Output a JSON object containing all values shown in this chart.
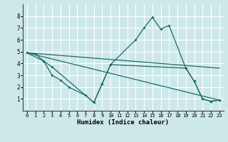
{
  "xlabel": "Humidex (Indice chaleur)",
  "background_color": "#cde8e8",
  "grid_color": "#ffffff",
  "line_color": "#1a6b6b",
  "xlim": [
    -0.5,
    23.5
  ],
  "ylim": [
    0,
    9
  ],
  "xticks": [
    0,
    1,
    2,
    3,
    4,
    5,
    6,
    7,
    8,
    9,
    10,
    11,
    12,
    13,
    14,
    15,
    16,
    17,
    18,
    19,
    20,
    21,
    22,
    23
  ],
  "yticks": [
    1,
    2,
    3,
    4,
    5,
    6,
    7,
    8
  ],
  "series": [
    {
      "x": [
        0,
        1,
        2,
        3,
        8,
        9,
        10,
        13,
        14,
        15,
        16,
        17,
        19,
        20,
        21,
        22,
        23
      ],
      "y": [
        4.9,
        4.8,
        4.2,
        3.7,
        0.7,
        2.3,
        3.9,
        6.0,
        7.0,
        7.9,
        6.9,
        7.2,
        3.6,
        2.5,
        1.0,
        0.8,
        0.9
      ]
    },
    {
      "x": [
        0,
        2,
        3,
        4,
        5,
        7,
        8,
        9,
        10,
        19,
        20,
        21,
        22,
        23
      ],
      "y": [
        4.9,
        4.2,
        3.0,
        2.6,
        2.0,
        1.3,
        0.7,
        2.3,
        3.9,
        3.6,
        2.5,
        1.0,
        0.8,
        0.9
      ]
    },
    {
      "x": [
        0,
        23
      ],
      "y": [
        4.9,
        3.6
      ]
    },
    {
      "x": [
        0,
        23
      ],
      "y": [
        4.9,
        0.9
      ]
    }
  ]
}
